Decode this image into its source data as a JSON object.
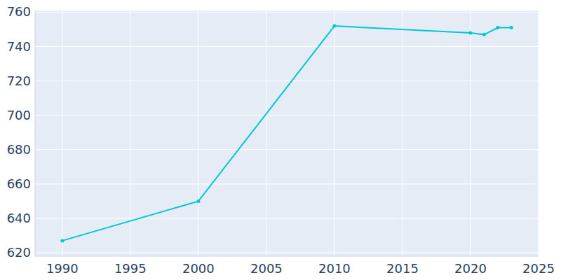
{
  "chart_data": {
    "type": "line",
    "x": [
      1990,
      2000,
      2010,
      2020,
      2021,
      2022,
      2023
    ],
    "values": [
      627,
      650,
      752,
      748,
      747,
      751,
      751
    ],
    "color": "#00c8d2",
    "marker": "circle",
    "xlim": [
      1988,
      2025
    ],
    "xticks": [
      1990,
      1995,
      2000,
      2005,
      2010,
      2015,
      2020,
      2025
    ],
    "ylim": [
      618,
      761
    ],
    "yticks": [
      620,
      640,
      660,
      680,
      700,
      720,
      740,
      760
    ],
    "grid": true
  }
}
